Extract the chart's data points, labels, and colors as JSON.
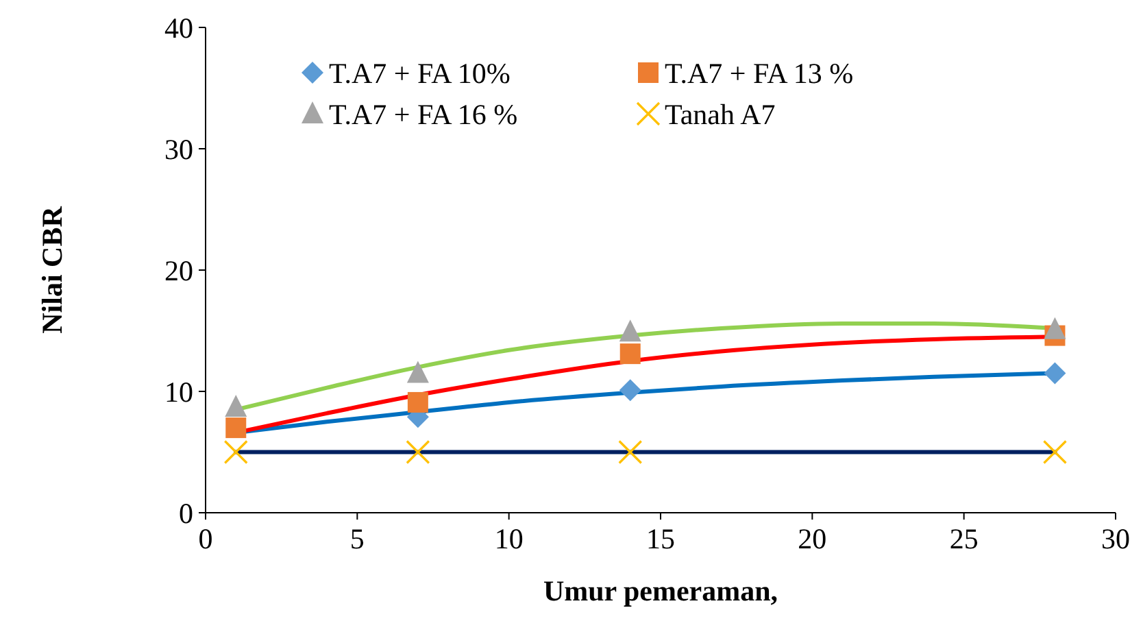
{
  "chart_data": {
    "type": "scatter",
    "xlabel": "Umur pemeraman,",
    "ylabel": "Nilai CBR",
    "xlim": [
      0,
      30
    ],
    "ylim": [
      0,
      40
    ],
    "xticks": [
      0,
      5,
      10,
      15,
      20,
      25,
      30
    ],
    "yticks": [
      0,
      10,
      20,
      30,
      40
    ],
    "grid": false,
    "legend": "top",
    "x": [
      1,
      7,
      14,
      28
    ],
    "series": [
      {
        "type": "line",
        "color": "#0070c0",
        "marker": "none",
        "x": [
          1,
          4,
          7,
          10,
          14,
          17,
          21,
          24,
          28
        ],
        "values": [
          6.6,
          7.5,
          8.3,
          9.1,
          9.9,
          10.4,
          10.9,
          11.2,
          11.5
        ]
      },
      {
        "type": "line",
        "color": "#ff0000",
        "marker": "none",
        "x": [
          1,
          4,
          7,
          10,
          14,
          17,
          21,
          24,
          28
        ],
        "values": [
          6.6,
          8.2,
          9.7,
          11.0,
          12.5,
          13.3,
          14.0,
          14.3,
          14.5
        ]
      },
      {
        "type": "line",
        "color": "#92d050",
        "marker": "none",
        "x": [
          1,
          4,
          7,
          10,
          14,
          17,
          21,
          24,
          28
        ],
        "values": [
          8.5,
          10.3,
          12.0,
          13.4,
          14.6,
          15.2,
          15.6,
          15.6,
          15.2
        ]
      },
      {
        "type": "line",
        "color": "#002060",
        "marker": "none",
        "x": [
          1,
          28
        ],
        "values": [
          5,
          5
        ]
      },
      {
        "name": "T.A7 + FA 10%",
        "color": "#5b9bd5",
        "marker": "diamond",
        "values": [
          null,
          7.9,
          10.1,
          11.5
        ]
      },
      {
        "name": "T.A7 + FA 13 %",
        "color": "#ed7d31",
        "marker": "square",
        "values": [
          7.0,
          9.1,
          13.1,
          14.6
        ]
      },
      {
        "name": "T.A7 + FA 16 %",
        "color": "#a5a5a5",
        "marker": "triangle",
        "values": [
          8.7,
          11.5,
          14.9,
          15.1
        ]
      },
      {
        "name": "Tanah A7",
        "color": "#ffc000",
        "marker": "cross",
        "values": [
          5,
          5,
          5,
          5
        ]
      }
    ]
  }
}
